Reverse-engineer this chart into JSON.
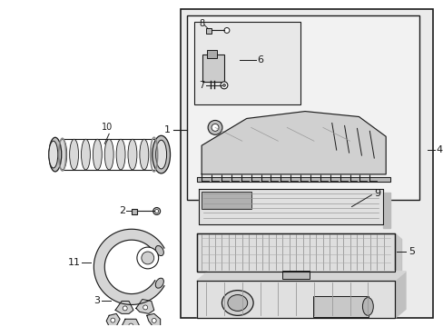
{
  "bg_color": "#ffffff",
  "line_color": "#1a1a1a",
  "shaded_fill": "#e8e8e8",
  "white_fill": "#ffffff",
  "part_fill": "#d4d4d4",
  "part_fill2": "#c0c0c0"
}
